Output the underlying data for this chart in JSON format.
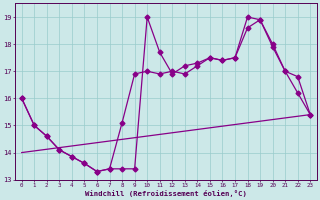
{
  "xlabel": "Windchill (Refroidissement éolien,°C)",
  "background_color": "#cce8e8",
  "grid_color": "#99cccc",
  "line_color": "#880088",
  "xlim_min": -0.5,
  "xlim_max": 23.5,
  "ylim_min": 13.0,
  "ylim_max": 19.5,
  "yticks": [
    13,
    14,
    15,
    16,
    17,
    18,
    19
  ],
  "xticks": [
    0,
    1,
    2,
    3,
    4,
    5,
    6,
    7,
    8,
    9,
    10,
    11,
    12,
    13,
    14,
    15,
    16,
    17,
    18,
    19,
    20,
    21,
    22,
    23
  ],
  "series1_x": [
    0,
    1,
    2,
    3,
    4,
    5,
    6,
    7,
    8,
    9,
    10,
    11,
    12,
    13,
    14,
    15,
    16,
    17,
    18,
    19,
    20,
    21,
    22,
    23
  ],
  "series1_y": [
    16.0,
    15.0,
    14.6,
    14.1,
    13.85,
    13.6,
    13.3,
    13.4,
    13.4,
    13.4,
    19.0,
    17.7,
    16.9,
    17.2,
    17.3,
    17.5,
    17.4,
    17.5,
    18.6,
    18.9,
    18.0,
    17.0,
    16.8,
    15.4
  ],
  "series2_x": [
    0,
    1,
    2,
    3,
    4,
    5,
    6,
    7,
    8,
    9,
    10,
    11,
    12,
    13,
    14,
    15,
    16,
    17,
    18,
    19,
    20,
    21,
    22,
    23
  ],
  "series2_y": [
    16.0,
    15.0,
    14.6,
    14.1,
    13.85,
    13.6,
    13.3,
    13.4,
    15.1,
    16.9,
    17.0,
    16.9,
    17.0,
    16.9,
    17.2,
    17.5,
    17.4,
    17.5,
    19.0,
    18.9,
    17.9,
    17.0,
    16.2,
    15.4
  ],
  "series3_x": [
    0,
    23
  ],
  "series3_y": [
    14.0,
    15.4
  ]
}
